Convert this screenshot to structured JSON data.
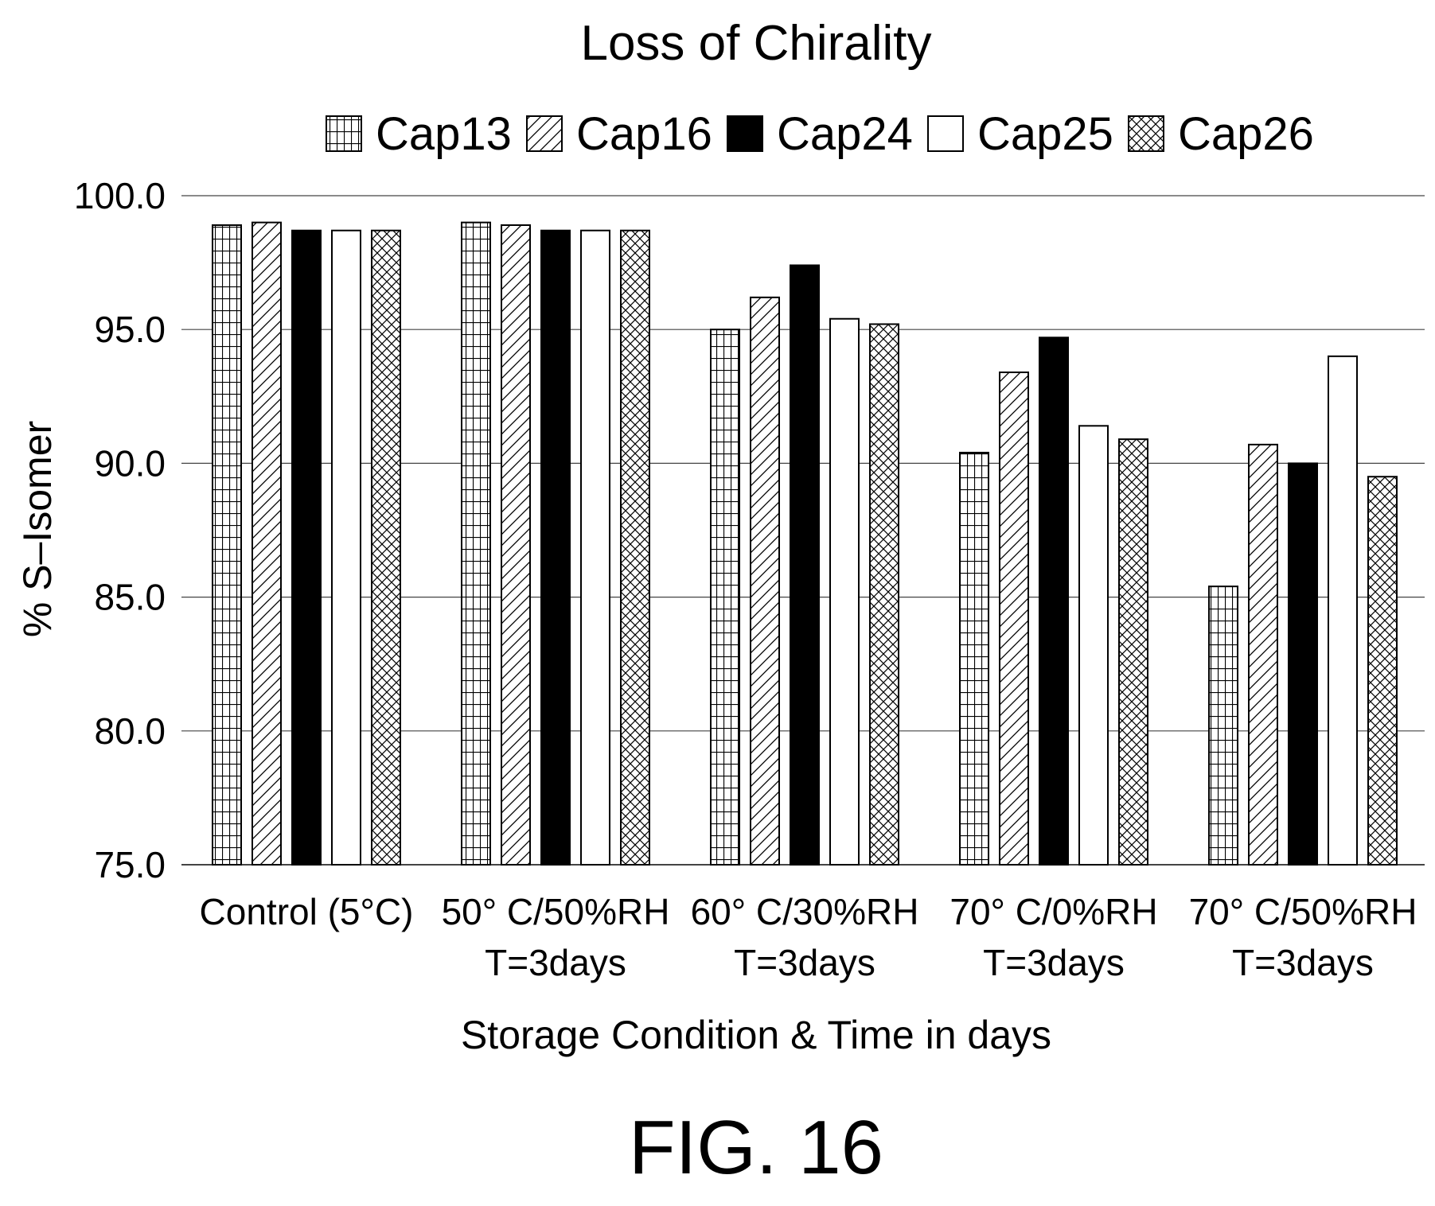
{
  "figure_label": "FIG. 16",
  "chart_data": {
    "type": "bar",
    "title": "Loss of Chirality",
    "xlabel": "Storage Condition & Time in days",
    "ylabel": "% S–Isomer",
    "ylim": [
      75.0,
      100.0
    ],
    "yticks": [
      "75.0",
      "80.0",
      "85.0",
      "90.0",
      "95.0",
      "100.0"
    ],
    "grid": true,
    "legend_position": "top",
    "categories": [
      [
        "Control (5°C)"
      ],
      [
        "50° C/50%RH",
        "T=3days"
      ],
      [
        "60° C/30%RH",
        "T=3days"
      ],
      [
        "70° C/0%RH",
        "T=3days"
      ],
      [
        "70° C/50%RH",
        "T=3days"
      ]
    ],
    "series": [
      {
        "name": "Cap13",
        "pattern": "grid",
        "values": [
          98.9,
          99.0,
          95.0,
          90.4,
          85.4
        ]
      },
      {
        "name": "Cap16",
        "pattern": "diagonal",
        "values": [
          99.0,
          98.9,
          96.2,
          93.4,
          90.7
        ]
      },
      {
        "name": "Cap24",
        "pattern": "solid-black",
        "values": [
          98.7,
          98.7,
          97.4,
          94.7,
          90.0
        ]
      },
      {
        "name": "Cap25",
        "pattern": "white",
        "values": [
          98.7,
          98.7,
          95.4,
          91.4,
          94.0
        ]
      },
      {
        "name": "Cap26",
        "pattern": "crosshatch",
        "values": [
          98.7,
          98.7,
          95.2,
          90.9,
          89.5
        ]
      }
    ],
    "colors": {
      "bar_outline": "#000000",
      "gridline": "#444444",
      "solid": "#000000",
      "background": "#ffffff"
    }
  }
}
